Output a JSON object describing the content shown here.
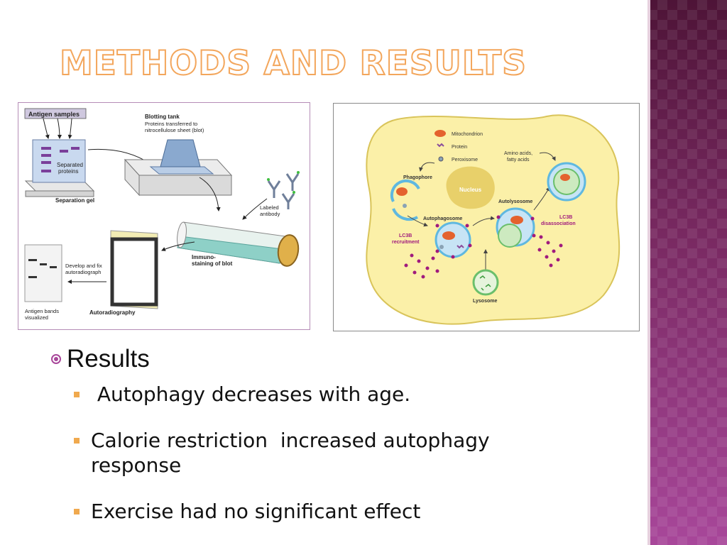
{
  "slide": {
    "title": "Methods and Results",
    "results_heading": "Results",
    "points": [
      " Autophagy decreases with age.",
      "Calorie restriction  increased autophagy response",
      "Exercise had no significant effect"
    ]
  },
  "western_blot": {
    "antigen_samples": "Antigen samples",
    "blotting_tank": "Blotting tank",
    "blot_desc1": "Proteins transferred to",
    "blot_desc2": "nitrocellulose sheet (blot)",
    "separated": "Separated",
    "proteins": "proteins",
    "separation_gel": "Separation gel",
    "labeled": "Labeled",
    "antibody": "antibody",
    "immuno1": "Immuno-",
    "immuno2": "staining of blot",
    "develop1": "Develop and fix",
    "develop2": "autoradiograph",
    "bands1": "Antigen bands",
    "bands2": "visualized",
    "autoradiography": "Autoradiography"
  },
  "autophagy": {
    "mitochondrion": "Mitochondrion",
    "protein": "Protein",
    "peroxisome": "Peroxisome",
    "amino1": "Amino acids,",
    "amino2": "fatty acids",
    "phagophore": "Phagophore",
    "nucleus": "Nucleus",
    "autolysosome": "Autolysosome",
    "autophagosome": "Autophagosome",
    "lc3b_rec1": "LC3B",
    "lc3b_rec2": "recruitment",
    "lc3b_dis1": "LC3B",
    "lc3b_dis2": "disassociation",
    "lysosome": "Lysosome"
  },
  "colors": {
    "accent": "#a8479a",
    "title_outline": "#f3a65c",
    "bullet": "#f0a94e"
  }
}
